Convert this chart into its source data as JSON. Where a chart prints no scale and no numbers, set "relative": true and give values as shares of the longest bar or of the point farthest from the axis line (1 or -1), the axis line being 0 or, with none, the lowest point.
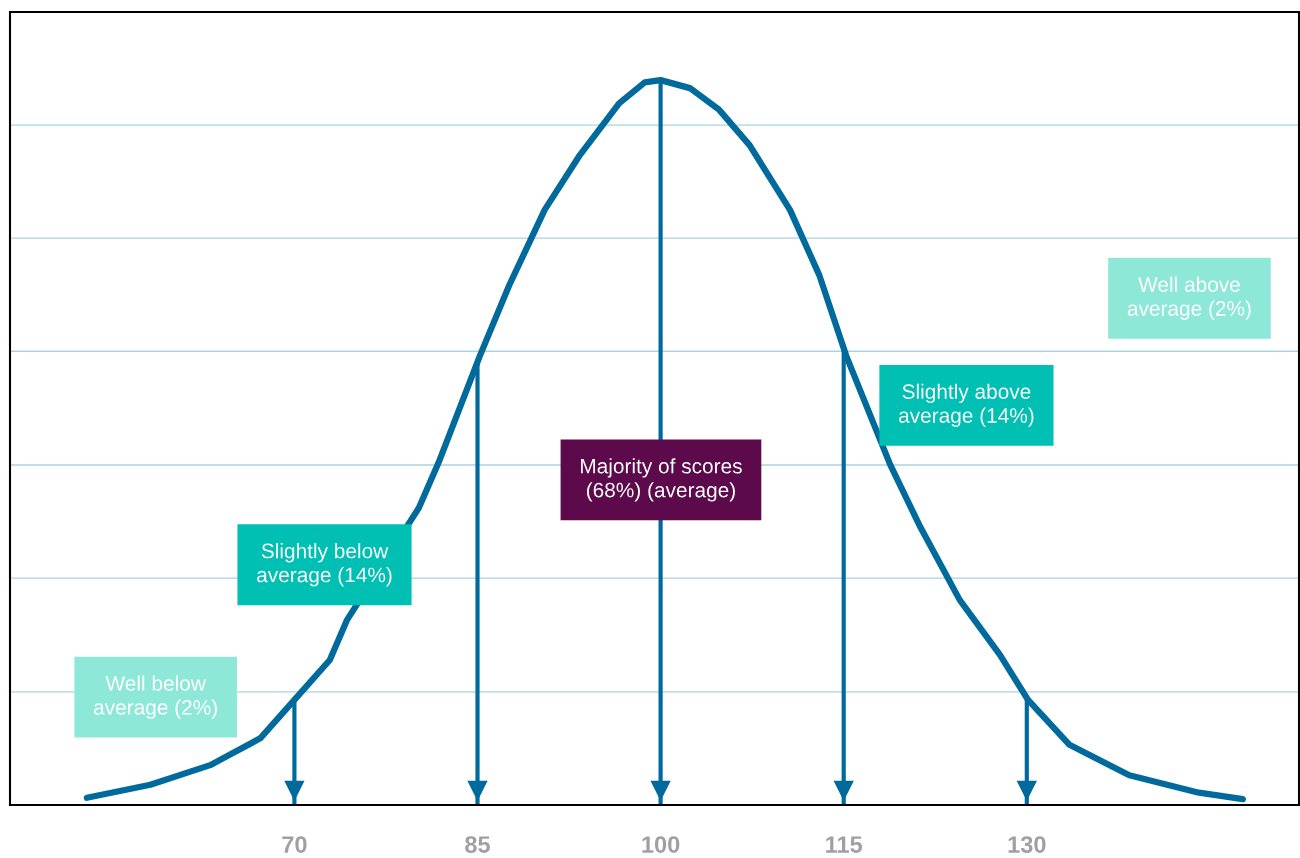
{
  "chart_data": {
    "type": "line",
    "relative": true,
    "x": [
      53.0,
      58.2,
      63.1,
      67.2,
      70,
      72.9,
      74.3,
      80.2,
      81.9,
      85.2,
      87.6,
      90.5,
      93.4,
      96.6,
      98.7,
      100,
      102.4,
      104.8,
      107.3,
      110.6,
      113,
      115.2,
      118.8,
      121.2,
      124.5,
      127.8,
      130.1,
      133.5,
      138.4,
      144.1,
      147.7
    ],
    "series": [
      {
        "color": "#006a9c",
        "values": [
          0.01,
          0.028,
          0.055,
          0.092,
          0.145,
          0.2,
          0.255,
          0.41,
          0.476,
          0.62,
          0.717,
          0.821,
          0.897,
          0.968,
          0.997,
          1.0,
          0.989,
          0.959,
          0.91,
          0.821,
          0.731,
          0.62,
          0.47,
          0.386,
          0.283,
          0.207,
          0.145,
          0.083,
          0.041,
          0.017,
          0.008
        ]
      }
    ],
    "xlim": [
      46.7,
      152.3
    ],
    "xticks": [
      70,
      85,
      100,
      115,
      130
    ],
    "marker": "none",
    "line_style": "solid",
    "ref_lines": [
      {
        "axis": "x",
        "value": 70,
        "label": null,
        "color": "#006a9c"
      },
      {
        "axis": "x",
        "value": 85,
        "label": null,
        "color": "#006a9c"
      },
      {
        "axis": "x",
        "value": 100,
        "label": null,
        "color": "#006a9c"
      },
      {
        "axis": "x",
        "value": 115,
        "label": null,
        "color": "#006a9c"
      },
      {
        "axis": "x",
        "value": 130,
        "label": null,
        "color": "#006a9c"
      },
      {
        "axis": "y",
        "value": 0.156,
        "label": null,
        "color": "#a8d4e0"
      },
      {
        "axis": "y",
        "value": 0.313,
        "label": null,
        "color": "#a8d4e0"
      },
      {
        "axis": "y",
        "value": 0.469,
        "label": null,
        "color": "#a8d4e0"
      },
      {
        "axis": "y",
        "value": 0.626,
        "label": null,
        "color": "#a8d4e0"
      },
      {
        "axis": "y",
        "value": 0.782,
        "label": null,
        "color": "#a8d4e0"
      },
      {
        "axis": "y",
        "value": 0.938,
        "label": null,
        "color": "#a8d4e0"
      }
    ],
    "annotations": [
      "Well below\naverage (2%)",
      "Slightly below\naverage (14%)",
      "Majority of scores\n(68%) (average)",
      "Slightly above\naverage (14%)",
      "Well above\naverage (2%)"
    ]
  }
}
